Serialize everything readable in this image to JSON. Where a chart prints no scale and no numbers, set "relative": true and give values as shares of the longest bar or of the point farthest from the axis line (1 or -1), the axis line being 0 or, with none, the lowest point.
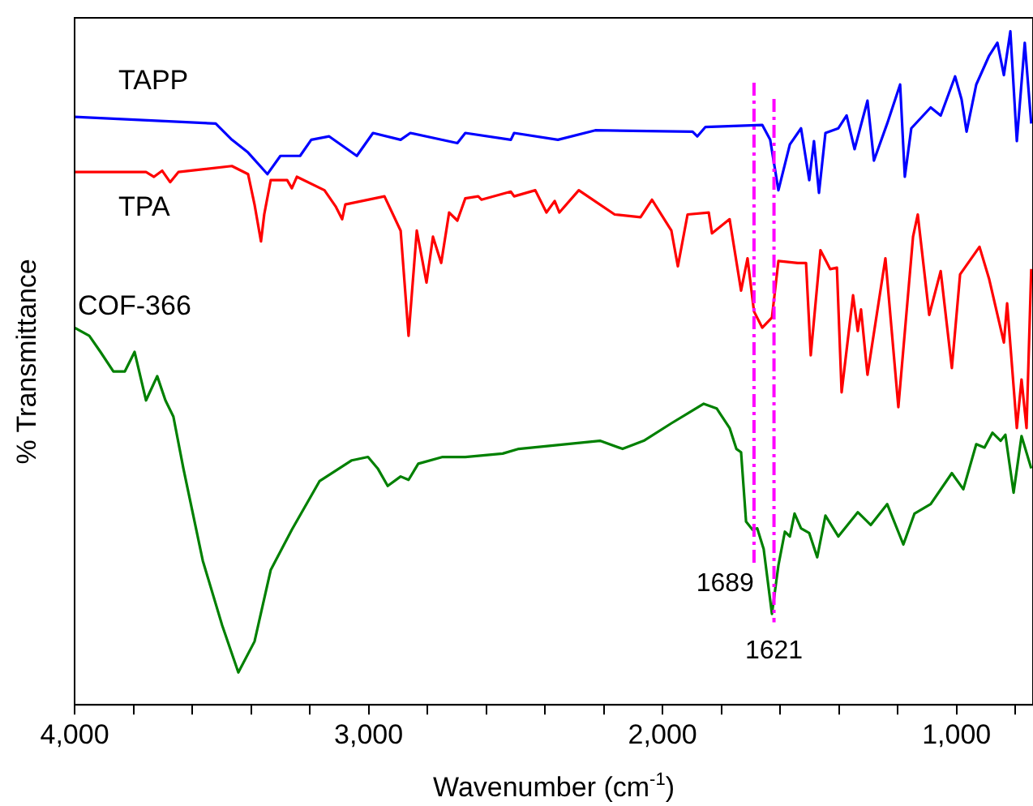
{
  "chart_data": {
    "type": "line",
    "relative": true,
    "xlabel": "Wavenumber (cm$^{-1}$)",
    "ylabel": "% Transmittance",
    "xlim": [
      4000,
      740
    ],
    "xticks": [
      {
        "value": 4000,
        "label": "4,000"
      },
      {
        "value": 3800,
        "label": null
      },
      {
        "value": 3600,
        "label": null
      },
      {
        "value": 3400,
        "label": null
      },
      {
        "value": 3200,
        "label": null
      },
      {
        "value": 3000,
        "label": "3,000"
      },
      {
        "value": 2800,
        "label": null
      },
      {
        "value": 2600,
        "label": null
      },
      {
        "value": 2400,
        "label": null
      },
      {
        "value": 2200,
        "label": null
      },
      {
        "value": 2000,
        "label": "2,000"
      },
      {
        "value": 1800,
        "label": null
      },
      {
        "value": 1600,
        "label": null
      },
      {
        "value": 1400,
        "label": null
      },
      {
        "value": 1200,
        "label": null
      },
      {
        "value": 1000,
        "label": "1,000"
      },
      {
        "value": 800,
        "label": null
      }
    ],
    "legend": false,
    "grid": false,
    "marker": "none",
    "line_style": "solid",
    "series": [
      {
        "name": "TAPP",
        "color": "#0000ff",
        "x": [
          4000,
          3520,
          3465,
          3410,
          3344,
          3300,
          3233,
          3195,
          3134,
          3040,
          2985,
          2891,
          2858,
          2698,
          2671,
          2516,
          2505,
          2356,
          2229,
          1898,
          1882,
          1854,
          1661,
          1634,
          1606,
          1567,
          1529,
          1501,
          1485,
          1468,
          1446,
          1402,
          1374,
          1347,
          1303,
          1281,
          1236,
          1192,
          1176,
          1154,
          1088,
          1054,
          1005,
          983,
          966,
          933,
          889,
          861,
          839,
          817,
          795,
          768,
          746
        ],
        "values": [
          0.873,
          0.863,
          0.839,
          0.82,
          0.788,
          0.815,
          0.815,
          0.839,
          0.844,
          0.815,
          0.849,
          0.839,
          0.849,
          0.834,
          0.849,
          0.839,
          0.849,
          0.839,
          0.853,
          0.851,
          0.844,
          0.858,
          0.861,
          0.839,
          0.764,
          0.832,
          0.856,
          0.779,
          0.837,
          0.76,
          0.849,
          0.856,
          0.875,
          0.825,
          0.897,
          0.808,
          0.863,
          0.921,
          0.784,
          0.856,
          0.887,
          0.875,
          0.933,
          0.899,
          0.851,
          0.921,
          0.964,
          0.983,
          0.935,
          1.0,
          0.837,
          0.983,
          0.863
        ]
      },
      {
        "name": "TPA",
        "color": "#ff0000",
        "x": [
          4000,
          3757,
          3730,
          3702,
          3675,
          3647,
          3465,
          3410,
          3388,
          3366,
          3355,
          3333,
          3277,
          3261,
          3244,
          3150,
          3112,
          3090,
          3079,
          2946,
          2891,
          2864,
          2836,
          2803,
          2781,
          2753,
          2726,
          2698,
          2671,
          2627,
          2616,
          2516,
          2505,
          2433,
          2395,
          2367,
          2351,
          2285,
          2163,
          2075,
          2036,
          1970,
          1948,
          1915,
          1843,
          1832,
          1772,
          1733,
          1711,
          1689,
          1661,
          1628,
          1606,
          1540,
          1512,
          1496,
          1463,
          1430,
          1407,
          1391,
          1352,
          1336,
          1325,
          1303,
          1242,
          1198,
          1148,
          1132,
          1093,
          1054,
          1016,
          988,
          922,
          889,
          839,
          828,
          795,
          779,
          762,
          746
        ],
        "values": [
          0.791,
          0.791,
          0.784,
          0.793,
          0.776,
          0.791,
          0.8,
          0.788,
          0.743,
          0.688,
          0.728,
          0.779,
          0.779,
          0.767,
          0.784,
          0.764,
          0.74,
          0.721,
          0.743,
          0.755,
          0.704,
          0.548,
          0.704,
          0.627,
          0.695,
          0.656,
          0.731,
          0.719,
          0.752,
          0.755,
          0.75,
          0.762,
          0.755,
          0.764,
          0.731,
          0.748,
          0.731,
          0.764,
          0.728,
          0.724,
          0.75,
          0.704,
          0.651,
          0.728,
          0.731,
          0.7,
          0.721,
          0.615,
          0.663,
          0.584,
          0.56,
          0.575,
          0.659,
          0.656,
          0.656,
          0.519,
          0.675,
          0.647,
          0.649,
          0.464,
          0.608,
          0.555,
          0.587,
          0.49,
          0.663,
          0.442,
          0.695,
          0.728,
          0.579,
          0.644,
          0.5,
          0.639,
          0.68,
          0.632,
          0.538,
          0.596,
          0.411,
          0.483,
          0.411,
          0.647
        ]
      },
      {
        "name": "COF-366",
        "color": "#008000",
        "x": [
          4000,
          3950,
          3912,
          3868,
          3829,
          3796,
          3757,
          3719,
          3691,
          3664,
          3630,
          3564,
          3498,
          3443,
          3388,
          3333,
          3261,
          3167,
          3057,
          3002,
          2969,
          2935,
          2891,
          2864,
          2831,
          2748,
          2671,
          2544,
          2489,
          2213,
          2136,
          2064,
          1970,
          1860,
          1816,
          1772,
          1749,
          1733,
          1716,
          1694,
          1678,
          1656,
          1628,
          1606,
          1584,
          1567,
          1551,
          1529,
          1501,
          1474,
          1446,
          1402,
          1336,
          1292,
          1236,
          1181,
          1143,
          1088,
          1016,
          977,
          933,
          905,
          878,
          850,
          834,
          806,
          779,
          746
        ],
        "values": [
          0.56,
          0.548,
          0.524,
          0.495,
          0.495,
          0.524,
          0.452,
          0.488,
          0.452,
          0.428,
          0.351,
          0.214,
          0.118,
          0.048,
          0.094,
          0.2,
          0.26,
          0.332,
          0.363,
          0.368,
          0.351,
          0.325,
          0.339,
          0.334,
          0.358,
          0.368,
          0.368,
          0.373,
          0.38,
          0.392,
          0.38,
          0.392,
          0.418,
          0.447,
          0.44,
          0.411,
          0.38,
          0.375,
          0.272,
          0.26,
          0.262,
          0.231,
          0.135,
          0.207,
          0.257,
          0.25,
          0.284,
          0.262,
          0.255,
          0.219,
          0.281,
          0.25,
          0.286,
          0.267,
          0.298,
          0.238,
          0.284,
          0.298,
          0.344,
          0.32,
          0.387,
          0.382,
          0.404,
          0.392,
          0.401,
          0.315,
          0.399,
          0.351
        ]
      }
    ],
    "ref_lines": [
      {
        "axis": "x",
        "value": 1689,
        "label": "1689",
        "color": "#ff00ff",
        "line_style": "dashed"
      },
      {
        "axis": "x",
        "value": 1621,
        "label": "1621",
        "color": "#ff00ff",
        "line_style": "dashed"
      }
    ]
  }
}
